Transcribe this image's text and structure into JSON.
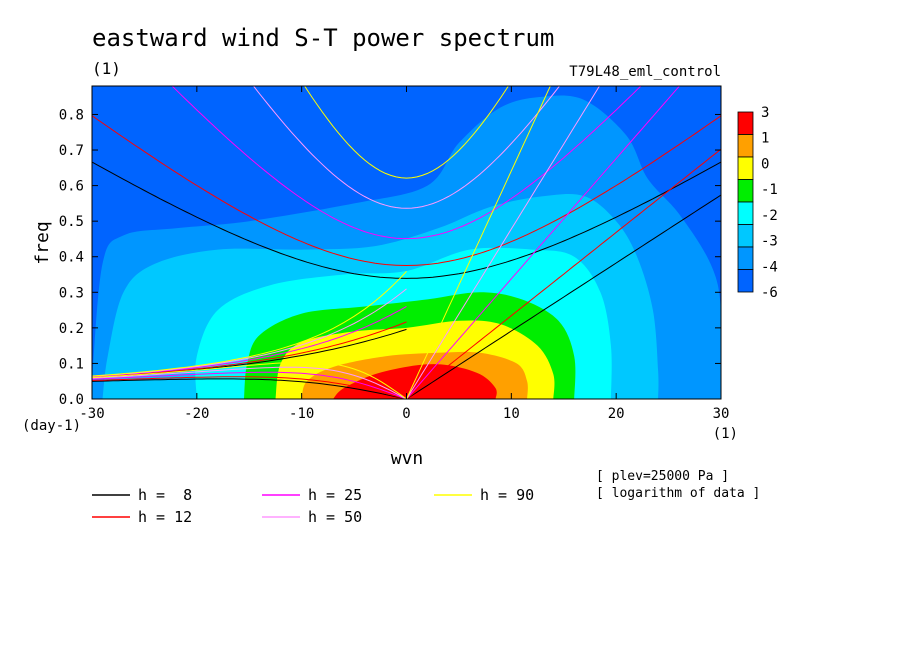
{
  "chart_data": {
    "type": "heatmap",
    "title": "eastward wind S-T power spectrum",
    "subtitle_left": "(1)",
    "subtitle_right": "T79L48_eml_control",
    "xlabel": "wvn",
    "ylabel": "freq",
    "x_unit": "(1)",
    "y_unit": "(day-1)",
    "xlim": [
      -30,
      30
    ],
    "ylim": [
      0,
      0.88
    ],
    "xticks": [
      -30,
      -20,
      -10,
      0,
      10,
      20,
      30
    ],
    "yticks": [
      0.0,
      0.1,
      0.2,
      0.3,
      0.4,
      0.5,
      0.6,
      0.7,
      0.8
    ],
    "xtick_labels": [
      "-30",
      "-20",
      "-10",
      "0",
      "10",
      "20",
      "30"
    ],
    "ytick_labels": [
      "0.0",
      "0.1",
      "0.2",
      "0.3",
      "0.4",
      "0.5",
      "0.6",
      "0.7",
      "0.8"
    ],
    "colorbar": {
      "labels": [
        "3",
        "1",
        "0",
        "-1",
        "-2",
        "-3",
        "-4",
        "-6"
      ],
      "colors": [
        "#ff0000",
        "#ffa000",
        "#ffff00",
        "#00ee00",
        "#00ffff",
        "#00c8ff",
        "#0096ff",
        "#0064ff"
      ]
    },
    "contour_regions": [
      {
        "level": "-4",
        "color": "#0096ff",
        "points": [
          [
            -30,
            0.05
          ],
          [
            -29,
            0.38
          ],
          [
            -27,
            0.46
          ],
          [
            -22,
            0.48
          ],
          [
            -15,
            0.5
          ],
          [
            -5,
            0.55
          ],
          [
            2,
            0.6
          ],
          [
            5,
            0.72
          ],
          [
            9,
            0.82
          ],
          [
            13,
            0.85
          ],
          [
            17,
            0.84
          ],
          [
            21,
            0.74
          ],
          [
            23,
            0.62
          ],
          [
            26,
            0.52
          ],
          [
            29,
            0.38
          ],
          [
            30,
            0.25
          ],
          [
            30,
            0
          ]
        ]
      },
      {
        "level": "-3",
        "color": "#00c8ff",
        "points": [
          [
            -29,
            0
          ],
          [
            -28.5,
            0.12
          ],
          [
            -27,
            0.3
          ],
          [
            -24,
            0.38
          ],
          [
            -18,
            0.42
          ],
          [
            -10,
            0.42
          ],
          [
            -3,
            0.43
          ],
          [
            3,
            0.48
          ],
          [
            8,
            0.54
          ],
          [
            13,
            0.57
          ],
          [
            17,
            0.57
          ],
          [
            20,
            0.5
          ],
          [
            22,
            0.4
          ],
          [
            23.5,
            0.25
          ],
          [
            24,
            0.08
          ],
          [
            24,
            0
          ]
        ]
      },
      {
        "level": "-2",
        "color": "#00ffff",
        "points": [
          [
            -20,
            0
          ],
          [
            -20,
            0.12
          ],
          [
            -18,
            0.25
          ],
          [
            -13,
            0.32
          ],
          [
            -6,
            0.35
          ],
          [
            0,
            0.36
          ],
          [
            6,
            0.42
          ],
          [
            12,
            0.42
          ],
          [
            16,
            0.4
          ],
          [
            18.5,
            0.3
          ],
          [
            19.5,
            0.15
          ],
          [
            19.5,
            0
          ]
        ]
      },
      {
        "level": "-1",
        "color": "#00ee00",
        "points": [
          [
            -15.5,
            0
          ],
          [
            -15.2,
            0.1
          ],
          [
            -14,
            0.18
          ],
          [
            -10,
            0.24
          ],
          [
            -4,
            0.26
          ],
          [
            2,
            0.28
          ],
          [
            7,
            0.3
          ],
          [
            11,
            0.28
          ],
          [
            14.5,
            0.22
          ],
          [
            16,
            0.12
          ],
          [
            16,
            0
          ]
        ]
      },
      {
        "level": "0",
        "color": "#ffff00",
        "points": [
          [
            -12.5,
            0
          ],
          [
            -12,
            0.1
          ],
          [
            -10,
            0.16
          ],
          [
            -5,
            0.19
          ],
          [
            0,
            0.2
          ],
          [
            5,
            0.22
          ],
          [
            9,
            0.21
          ],
          [
            12.5,
            0.15
          ],
          [
            14,
            0.07
          ],
          [
            14,
            0
          ]
        ]
      },
      {
        "level": "1",
        "color": "#ffa000",
        "points": [
          [
            -10,
            0
          ],
          [
            -9.5,
            0.05
          ],
          [
            -7,
            0.09
          ],
          [
            -2,
            0.12
          ],
          [
            3,
            0.13
          ],
          [
            7,
            0.13
          ],
          [
            10.5,
            0.1
          ],
          [
            11.5,
            0.05
          ],
          [
            11.5,
            0
          ]
        ]
      },
      {
        "level": "3",
        "color": "#ff0000",
        "points": [
          [
            -7,
            0
          ],
          [
            -6,
            0.03
          ],
          [
            -3,
            0.07
          ],
          [
            1,
            0.095
          ],
          [
            4,
            0.095
          ],
          [
            7,
            0.07
          ],
          [
            8.5,
            0.03
          ],
          [
            8.5,
            0
          ]
        ]
      }
    ],
    "dispersion_curves": [
      {
        "name": "h =  8",
        "color": "#000000",
        "h": 8
      },
      {
        "name": "h = 12",
        "color": "#ff0000",
        "h": 12
      },
      {
        "name": "h = 25",
        "color": "#ff00ff",
        "h": 25
      },
      {
        "name": "h = 50",
        "color": "#ff99ff",
        "h": 50
      },
      {
        "name": "h = 90",
        "color": "#ffff00",
        "h": 90
      }
    ],
    "annotations": [
      "[ plev=25000 Pa ]",
      "[ logarithm of data ]"
    ]
  }
}
